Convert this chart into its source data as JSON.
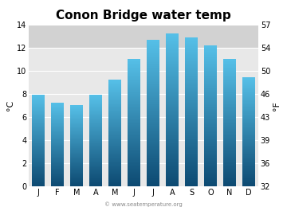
{
  "title": "Conon Bridge water temp",
  "months": [
    "J",
    "F",
    "M",
    "A",
    "M",
    "J",
    "J",
    "A",
    "S",
    "O",
    "N",
    "D"
  ],
  "values_c": [
    7.9,
    7.2,
    7.0,
    7.9,
    9.2,
    11.0,
    12.7,
    13.2,
    12.9,
    12.2,
    11.0,
    9.4
  ],
  "ylim_c": [
    0,
    14
  ],
  "yticks_c": [
    0,
    2,
    4,
    6,
    8,
    10,
    12,
    14
  ],
  "yticks_f": [
    32,
    36,
    39,
    43,
    46,
    50,
    54,
    57
  ],
  "ylabel_left": "°C",
  "ylabel_right": "°F",
  "fig_bg_color": "#ffffff",
  "plot_bg_color": "#e8e8e8",
  "plot_bg_top_color": "#d4d4d4",
  "bar_color_top": "#56c0e8",
  "bar_color_bottom": "#0d4a72",
  "title_fontsize": 11,
  "axis_fontsize": 7,
  "label_fontsize": 8,
  "watermark": "© www.seatemperature.org",
  "bar_width": 0.65
}
